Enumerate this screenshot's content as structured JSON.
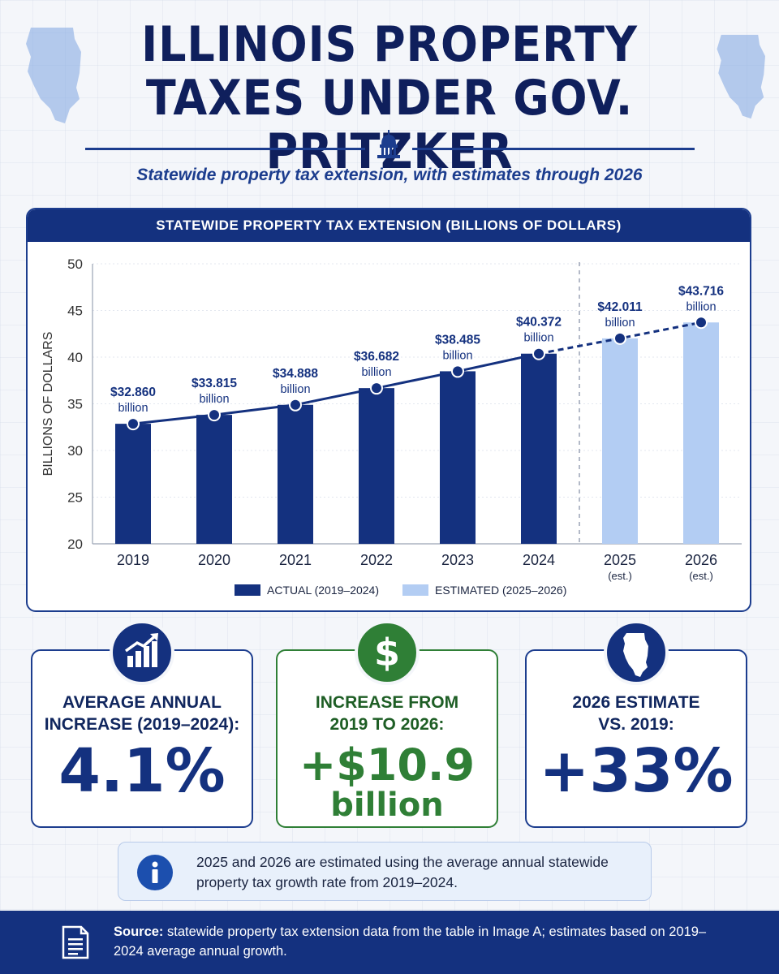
{
  "title": "ILLINOIS PROPERTY TAXES UNDER GOV. PRITZKER",
  "subtitle": "Statewide property tax extension, with estimates through 2026",
  "chart_header": "STATEWIDE PROPERTY TAX EXTENSION (BILLIONS OF DOLLARS)",
  "chart_data": {
    "type": "bar",
    "ylabel": "BILLIONS OF DOLLARS",
    "ylim": [
      20,
      50
    ],
    "yticks": [
      20,
      25,
      30,
      35,
      40,
      45,
      50
    ],
    "categories": [
      "2019",
      "2020",
      "2021",
      "2022",
      "2023",
      "2024",
      "2025",
      "2026"
    ],
    "category_sublabels": [
      "",
      "",
      "",
      "",
      "",
      "",
      "(est.)",
      "(est.)"
    ],
    "values": [
      32.86,
      33.815,
      34.888,
      36.682,
      38.485,
      40.372,
      42.011,
      43.716
    ],
    "value_labels": [
      "$32.860",
      "$33.815",
      "$34.888",
      "$36.682",
      "$38.485",
      "$40.372",
      "$42.011",
      "$43.716"
    ],
    "value_unit": "billion",
    "estimated": [
      false,
      false,
      false,
      false,
      false,
      false,
      true,
      true
    ],
    "legend": [
      {
        "label": "ACTUAL (2019–2024)",
        "color": "#14317f"
      },
      {
        "label": "ESTIMATED (2025–2026)",
        "color": "#b3cdf3"
      }
    ],
    "legend_position": "bottom-center",
    "colors": {
      "actual": "#14317f",
      "estimated": "#b3cdf3",
      "line": "#14317f"
    }
  },
  "stats": [
    {
      "icon": "growth-chart-icon",
      "label_line1": "AVERAGE ANNUAL",
      "label_line2": "INCREASE (2019–2024):",
      "value": "4.1%",
      "unit": ""
    },
    {
      "icon": "dollar-icon",
      "label_line1": "INCREASE FROM",
      "label_line2": "2019 TO 2026:",
      "value": "+$10.9",
      "unit": "billion"
    },
    {
      "icon": "illinois-map-icon",
      "label_line1": "2026 ESTIMATE",
      "label_line2": "VS. 2019:",
      "value": "+33%",
      "unit": ""
    }
  ],
  "note": "2025 and 2026 are estimated using the average annual statewide property tax growth rate from 2019–2024.",
  "footer": {
    "source_label": "Source:",
    "source_text": "statewide property tax extension data from the table in Image A; estimates based on 2019–2024 average annual growth."
  }
}
